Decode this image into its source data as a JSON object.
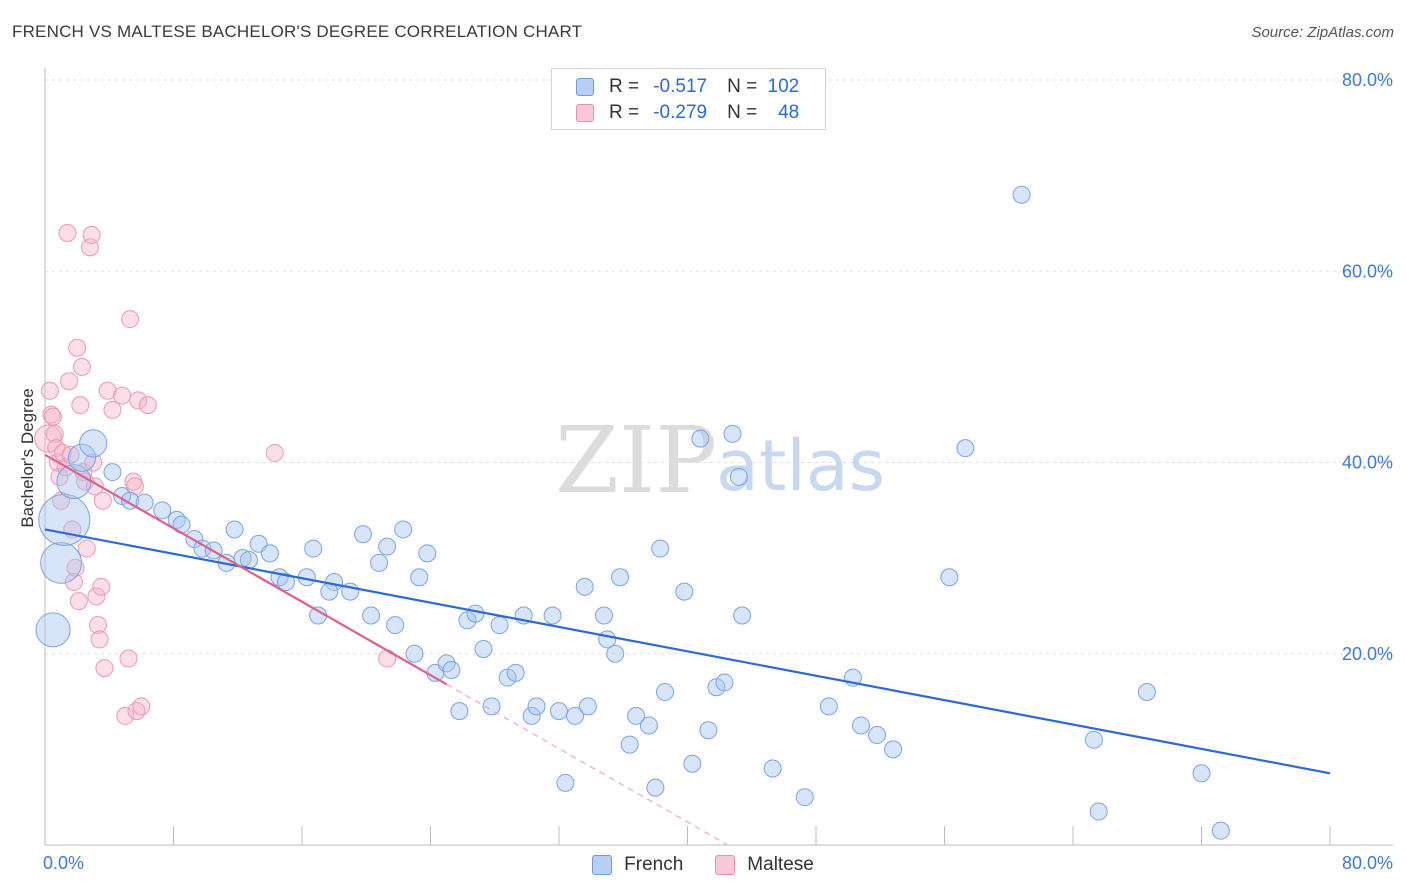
{
  "title": "FRENCH VS MALTESE BACHELOR'S DEGREE CORRELATION CHART",
  "source": "Source: ZipAtlas.com",
  "watermark": {
    "zip": "ZIP",
    "atlas": "atlas"
  },
  "legend": {
    "r_label": "R =",
    "n_label": "N =",
    "rows": [
      {
        "r": "-0.517",
        "n": "102"
      },
      {
        "r": "-0.279",
        "n": "48"
      }
    ]
  },
  "chart_data": {
    "type": "scatter",
    "title": "FRENCH VS MALTESE BACHELOR'S DEGREE CORRELATION CHART",
    "xlabel": "",
    "ylabel": "Bachelor's Degree",
    "xlim": [
      0,
      80
    ],
    "ylim": [
      0,
      80
    ],
    "x_tick_labels": [
      "0.0%",
      "80.0%"
    ],
    "y_tick_labels": [
      "20.0%",
      "40.0%",
      "60.0%",
      "80.0%"
    ],
    "y_tick_values": [
      20,
      40,
      60,
      80
    ],
    "colors": {
      "French": "#6d9be0",
      "Maltese": "#ea8fac",
      "french_line": "#2a6ad5",
      "maltese_line": "#e0608a"
    },
    "series": [
      {
        "name": "French",
        "trend": {
          "x0": 0,
          "y0": 33.0,
          "x1": 80,
          "y1": 7.5
        },
        "points": [
          [
            0.5,
            22.5,
            2
          ],
          [
            1.0,
            29.5,
            2.4
          ],
          [
            1.2,
            34.0,
            3
          ],
          [
            1.8,
            38.0,
            2
          ],
          [
            2.3,
            40.5,
            1.6
          ],
          [
            3.0,
            42.0,
            1.6
          ],
          [
            4.2,
            39.0,
            1
          ],
          [
            4.8,
            36.5,
            1
          ],
          [
            5.3,
            36.0,
            1
          ],
          [
            6.2,
            35.8,
            1
          ],
          [
            7.3,
            35.0,
            1
          ],
          [
            8.2,
            34.0,
            1
          ],
          [
            8.5,
            33.5,
            1
          ],
          [
            9.3,
            32.0,
            1
          ],
          [
            9.8,
            31.0,
            1
          ],
          [
            10.5,
            30.8,
            1
          ],
          [
            11.3,
            29.5,
            1
          ],
          [
            11.8,
            33.0,
            1
          ],
          [
            12.3,
            30.0,
            1
          ],
          [
            12.7,
            29.8,
            1
          ],
          [
            13.3,
            31.5,
            1
          ],
          [
            14.0,
            30.5,
            1
          ],
          [
            14.6,
            28.0,
            1
          ],
          [
            15.0,
            27.5,
            1
          ],
          [
            16.3,
            28.0,
            1
          ],
          [
            16.7,
            31.0,
            1
          ],
          [
            17.0,
            24.0,
            1
          ],
          [
            18.0,
            27.5,
            1
          ],
          [
            17.7,
            26.5,
            1
          ],
          [
            19.0,
            26.5,
            1
          ],
          [
            19.8,
            32.5,
            1
          ],
          [
            20.3,
            24.0,
            1
          ],
          [
            20.8,
            29.5,
            1
          ],
          [
            21.3,
            31.2,
            1
          ],
          [
            21.8,
            23.0,
            1
          ],
          [
            22.3,
            33.0,
            1
          ],
          [
            23.0,
            20.0,
            1
          ],
          [
            23.3,
            28.0,
            1
          ],
          [
            23.8,
            30.5,
            1
          ],
          [
            24.3,
            18.0,
            1
          ],
          [
            25.0,
            19.0,
            1
          ],
          [
            25.3,
            18.3,
            1
          ],
          [
            25.8,
            14.0,
            1
          ],
          [
            26.3,
            23.5,
            1
          ],
          [
            26.8,
            24.2,
            1
          ],
          [
            27.3,
            20.5,
            1
          ],
          [
            27.8,
            14.5,
            1
          ],
          [
            28.3,
            23.0,
            1
          ],
          [
            28.8,
            17.5,
            1
          ],
          [
            29.3,
            18.0,
            1
          ],
          [
            29.8,
            24.0,
            1
          ],
          [
            30.3,
            13.5,
            1
          ],
          [
            30.6,
            14.5,
            1
          ],
          [
            31.6,
            24.0,
            1
          ],
          [
            32.0,
            14.0,
            1
          ],
          [
            32.4,
            6.5,
            1
          ],
          [
            33.0,
            13.5,
            1
          ],
          [
            33.6,
            27.0,
            1
          ],
          [
            33.8,
            14.5,
            1
          ],
          [
            34.8,
            24.0,
            1
          ],
          [
            35.0,
            21.5,
            1
          ],
          [
            35.5,
            20.0,
            1
          ],
          [
            35.8,
            28.0,
            1
          ],
          [
            36.4,
            10.5,
            1
          ],
          [
            36.8,
            13.5,
            1
          ],
          [
            37.6,
            12.5,
            1
          ],
          [
            38.0,
            6.0,
            1
          ],
          [
            38.3,
            31.0,
            1
          ],
          [
            38.6,
            16.0,
            1
          ],
          [
            39.8,
            26.5,
            1
          ],
          [
            40.3,
            8.5,
            1
          ],
          [
            40.8,
            42.5,
            1
          ],
          [
            41.3,
            12.0,
            1
          ],
          [
            41.8,
            16.5,
            1
          ],
          [
            42.3,
            17.0,
            1
          ],
          [
            42.8,
            43.0,
            1
          ],
          [
            43.2,
            38.5,
            1
          ],
          [
            43.4,
            24.0,
            1
          ],
          [
            45.3,
            8.0,
            1
          ],
          [
            47.3,
            5.0,
            1
          ],
          [
            48.8,
            14.5,
            1
          ],
          [
            50.3,
            17.5,
            1
          ],
          [
            50.8,
            12.5,
            1
          ],
          [
            51.8,
            11.5,
            1
          ],
          [
            52.8,
            10.0,
            1
          ],
          [
            56.3,
            28.0,
            1
          ],
          [
            57.3,
            41.5,
            1
          ],
          [
            60.8,
            68.0,
            1
          ],
          [
            65.3,
            11.0,
            1
          ],
          [
            65.6,
            3.5,
            1
          ],
          [
            68.6,
            16.0,
            1
          ],
          [
            72.0,
            7.5,
            1
          ],
          [
            73.2,
            1.5,
            1
          ]
        ]
      },
      {
        "name": "Maltese",
        "trend": {
          "x0": 0,
          "y0": 40.8,
          "x1": 25,
          "y1": 16.8,
          "dash_to_x": 42.5
        },
        "points": [
          [
            0.2,
            42.5,
            1.6
          ],
          [
            0.3,
            47.5,
            1
          ],
          [
            0.4,
            45.0,
            1
          ],
          [
            0.5,
            44.8,
            1
          ],
          [
            0.6,
            43.0,
            1
          ],
          [
            0.7,
            41.5,
            1
          ],
          [
            0.8,
            40.0,
            1
          ],
          [
            0.9,
            38.5,
            1
          ],
          [
            1.0,
            36.0,
            1
          ],
          [
            1.1,
            41.0,
            1
          ],
          [
            1.3,
            39.5,
            1
          ],
          [
            1.4,
            64.0,
            1
          ],
          [
            1.5,
            48.5,
            1
          ],
          [
            1.6,
            40.8,
            1
          ],
          [
            1.7,
            33.0,
            1
          ],
          [
            1.8,
            27.5,
            1
          ],
          [
            1.9,
            29.0,
            1
          ],
          [
            2.0,
            52.0,
            1
          ],
          [
            2.1,
            25.5,
            1
          ],
          [
            2.2,
            46.0,
            1
          ],
          [
            2.3,
            50.0,
            1
          ],
          [
            2.4,
            39.0,
            1
          ],
          [
            2.5,
            38.0,
            1
          ],
          [
            2.6,
            31.0,
            1
          ],
          [
            2.8,
            62.5,
            1
          ],
          [
            2.9,
            63.8,
            1
          ],
          [
            3.0,
            40.0,
            1
          ],
          [
            3.1,
            37.5,
            1
          ],
          [
            3.2,
            26.0,
            1
          ],
          [
            3.3,
            23.0,
            1
          ],
          [
            3.4,
            21.5,
            1
          ],
          [
            3.5,
            27.0,
            1
          ],
          [
            3.6,
            36.0,
            1
          ],
          [
            3.7,
            18.5,
            1
          ],
          [
            3.9,
            47.5,
            1
          ],
          [
            4.2,
            45.5,
            1
          ],
          [
            4.8,
            47.0,
            1
          ],
          [
            5.0,
            13.5,
            1
          ],
          [
            5.3,
            55.0,
            1
          ],
          [
            5.2,
            19.5,
            1
          ],
          [
            5.5,
            38.0,
            1
          ],
          [
            5.6,
            37.5,
            1
          ],
          [
            5.8,
            46.5,
            1
          ],
          [
            5.7,
            14.0,
            1
          ],
          [
            6.0,
            14.5,
            1
          ],
          [
            6.4,
            46.0,
            1
          ],
          [
            14.3,
            41.0,
            1
          ],
          [
            21.3,
            19.5,
            1
          ]
        ]
      }
    ]
  },
  "bottom_legend": [
    "French",
    "Maltese"
  ]
}
